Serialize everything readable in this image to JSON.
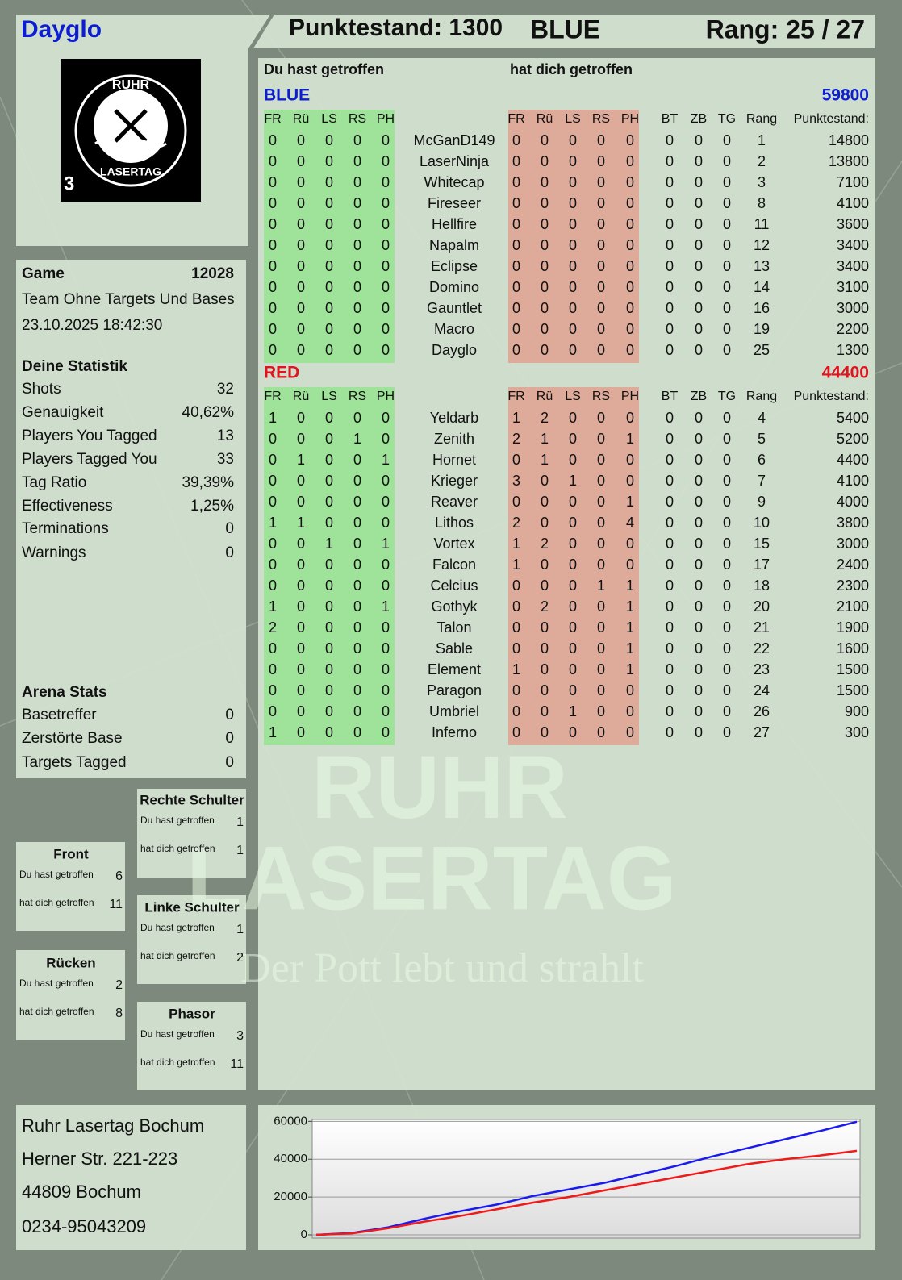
{
  "header": {
    "name": "Dayglo",
    "score": "Punktestand: 1300",
    "team": "BLUE",
    "rank": "Rang: 25 / 27"
  },
  "logo": {
    "top": "RUHR",
    "bottom": "LASERTAG",
    "badge": "3"
  },
  "game": {
    "label": "Game",
    "id": 12028,
    "mode": "Team Ohne Targets Und Bases",
    "date": "23.10.2025 18:42:30"
  },
  "statistik": {
    "title": "Deine Statistik",
    "rows": [
      [
        "Shots",
        32
      ],
      [
        "Genauigkeit",
        "40,62%"
      ],
      [
        "Players You Tagged",
        13
      ],
      [
        "Players Tagged You",
        33
      ],
      [
        "Tag Ratio",
        "39,39%"
      ],
      [
        "Effectiveness",
        "1,25%"
      ],
      [
        "Terminations",
        0
      ],
      [
        "Warnings",
        0
      ]
    ]
  },
  "arena": {
    "title": "Arena Stats",
    "rows": [
      [
        "Basetreffer",
        0
      ],
      [
        "Zerstörte Base",
        0
      ],
      [
        "Targets Tagged",
        0
      ]
    ]
  },
  "zones": [
    {
      "title": "Rechte Schulter",
      "rows": [
        [
          "Du hast getroffen",
          1
        ],
        [
          "hat dich getroffen",
          1
        ]
      ]
    },
    {
      "title": "Front",
      "rows": [
        [
          "Du hast getroffen",
          6
        ],
        [
          "hat dich getroffen",
          11
        ]
      ]
    },
    {
      "title": "Linke Schulter",
      "rows": [
        [
          "Du hast getroffen",
          1
        ],
        [
          "hat dich getroffen",
          2
        ]
      ]
    },
    {
      "title": "Rücken",
      "rows": [
        [
          "Du hast getroffen",
          2
        ],
        [
          "hat dich getroffen",
          8
        ]
      ]
    },
    {
      "title": "Phasor",
      "rows": [
        [
          "Du hast getroffen",
          3
        ],
        [
          "hat dich getroffen",
          11
        ]
      ]
    }
  ],
  "address": [
    "Ruhr Lasertag Bochum",
    "Herner Str. 221-223",
    "44809 Bochum",
    "0234-95043209"
  ],
  "table": {
    "hit_heading": "Du hast getroffen",
    "got_heading": "hat dich getroffen",
    "hit_columns": [
      "FR",
      "Rü",
      "LS",
      "RS",
      "PH"
    ],
    "extra_columns": [
      "BT",
      "ZB",
      "TG",
      "Rang",
      "Punktestand:"
    ],
    "teams": [
      {
        "name": "BLUE",
        "total": 59800,
        "color": "#0c1ed0",
        "players": [
          {
            "name": "McGanD149",
            "hit": [
              0,
              0,
              0,
              0,
              0
            ],
            "got": [
              0,
              0,
              0,
              0,
              0
            ],
            "extra": [
              0,
              0,
              0,
              1,
              14800
            ]
          },
          {
            "name": "LaserNinja",
            "hit": [
              0,
              0,
              0,
              0,
              0
            ],
            "got": [
              0,
              0,
              0,
              0,
              0
            ],
            "extra": [
              0,
              0,
              0,
              2,
              13800
            ]
          },
          {
            "name": "Whitecap",
            "hit": [
              0,
              0,
              0,
              0,
              0
            ],
            "got": [
              0,
              0,
              0,
              0,
              0
            ],
            "extra": [
              0,
              0,
              0,
              3,
              7100
            ]
          },
          {
            "name": "Fireseer",
            "hit": [
              0,
              0,
              0,
              0,
              0
            ],
            "got": [
              0,
              0,
              0,
              0,
              0
            ],
            "extra": [
              0,
              0,
              0,
              8,
              4100
            ]
          },
          {
            "name": "Hellfire",
            "hit": [
              0,
              0,
              0,
              0,
              0
            ],
            "got": [
              0,
              0,
              0,
              0,
              0
            ],
            "extra": [
              0,
              0,
              0,
              11,
              3600
            ]
          },
          {
            "name": "Napalm",
            "hit": [
              0,
              0,
              0,
              0,
              0
            ],
            "got": [
              0,
              0,
              0,
              0,
              0
            ],
            "extra": [
              0,
              0,
              0,
              12,
              3400
            ]
          },
          {
            "name": "Eclipse",
            "hit": [
              0,
              0,
              0,
              0,
              0
            ],
            "got": [
              0,
              0,
              0,
              0,
              0
            ],
            "extra": [
              0,
              0,
              0,
              13,
              3400
            ]
          },
          {
            "name": "Domino",
            "hit": [
              0,
              0,
              0,
              0,
              0
            ],
            "got": [
              0,
              0,
              0,
              0,
              0
            ],
            "extra": [
              0,
              0,
              0,
              14,
              3100
            ]
          },
          {
            "name": "Gauntlet",
            "hit": [
              0,
              0,
              0,
              0,
              0
            ],
            "got": [
              0,
              0,
              0,
              0,
              0
            ],
            "extra": [
              0,
              0,
              0,
              16,
              3000
            ]
          },
          {
            "name": "Macro",
            "hit": [
              0,
              0,
              0,
              0,
              0
            ],
            "got": [
              0,
              0,
              0,
              0,
              0
            ],
            "extra": [
              0,
              0,
              0,
              19,
              2200
            ]
          },
          {
            "name": "Dayglo",
            "hit": [
              0,
              0,
              0,
              0,
              0
            ],
            "got": [
              0,
              0,
              0,
              0,
              0
            ],
            "extra": [
              0,
              0,
              0,
              25,
              1300
            ]
          }
        ]
      },
      {
        "name": "RED",
        "total": 44400,
        "color": "#e0141e",
        "players": [
          {
            "name": "Yeldarb",
            "hit": [
              1,
              0,
              0,
              0,
              0
            ],
            "got": [
              1,
              2,
              0,
              0,
              0
            ],
            "extra": [
              0,
              0,
              0,
              4,
              5400
            ]
          },
          {
            "name": "Zenith",
            "hit": [
              0,
              0,
              0,
              1,
              0
            ],
            "got": [
              2,
              1,
              0,
              0,
              1
            ],
            "extra": [
              0,
              0,
              0,
              5,
              5200
            ]
          },
          {
            "name": "Hornet",
            "hit": [
              0,
              1,
              0,
              0,
              1
            ],
            "got": [
              0,
              1,
              0,
              0,
              0
            ],
            "extra": [
              0,
              0,
              0,
              6,
              4400
            ]
          },
          {
            "name": "Krieger",
            "hit": [
              0,
              0,
              0,
              0,
              0
            ],
            "got": [
              3,
              0,
              1,
              0,
              0
            ],
            "extra": [
              0,
              0,
              0,
              7,
              4100
            ]
          },
          {
            "name": "Reaver",
            "hit": [
              0,
              0,
              0,
              0,
              0
            ],
            "got": [
              0,
              0,
              0,
              0,
              1
            ],
            "extra": [
              0,
              0,
              0,
              9,
              4000
            ]
          },
          {
            "name": "Lithos",
            "hit": [
              1,
              1,
              0,
              0,
              0
            ],
            "got": [
              2,
              0,
              0,
              0,
              4
            ],
            "extra": [
              0,
              0,
              0,
              10,
              3800
            ]
          },
          {
            "name": "Vortex",
            "hit": [
              0,
              0,
              1,
              0,
              1
            ],
            "got": [
              1,
              2,
              0,
              0,
              0
            ],
            "extra": [
              0,
              0,
              0,
              15,
              3000
            ]
          },
          {
            "name": "Falcon",
            "hit": [
              0,
              0,
              0,
              0,
              0
            ],
            "got": [
              1,
              0,
              0,
              0,
              0
            ],
            "extra": [
              0,
              0,
              0,
              17,
              2400
            ]
          },
          {
            "name": "Celcius",
            "hit": [
              0,
              0,
              0,
              0,
              0
            ],
            "got": [
              0,
              0,
              0,
              1,
              1
            ],
            "extra": [
              0,
              0,
              0,
              18,
              2300
            ]
          },
          {
            "name": "Gothyk",
            "hit": [
              1,
              0,
              0,
              0,
              1
            ],
            "got": [
              0,
              2,
              0,
              0,
              1
            ],
            "extra": [
              0,
              0,
              0,
              20,
              2100
            ]
          },
          {
            "name": "Talon",
            "hit": [
              2,
              0,
              0,
              0,
              0
            ],
            "got": [
              0,
              0,
              0,
              0,
              1
            ],
            "extra": [
              0,
              0,
              0,
              21,
              1900
            ]
          },
          {
            "name": "Sable",
            "hit": [
              0,
              0,
              0,
              0,
              0
            ],
            "got": [
              0,
              0,
              0,
              0,
              1
            ],
            "extra": [
              0,
              0,
              0,
              22,
              1600
            ]
          },
          {
            "name": "Element",
            "hit": [
              0,
              0,
              0,
              0,
              0
            ],
            "got": [
              1,
              0,
              0,
              0,
              1
            ],
            "extra": [
              0,
              0,
              0,
              23,
              1500
            ]
          },
          {
            "name": "Paragon",
            "hit": [
              0,
              0,
              0,
              0,
              0
            ],
            "got": [
              0,
              0,
              0,
              0,
              0
            ],
            "extra": [
              0,
              0,
              0,
              24,
              1500
            ]
          },
          {
            "name": "Umbriel",
            "hit": [
              0,
              0,
              0,
              0,
              0
            ],
            "got": [
              0,
              0,
              1,
              0,
              0
            ],
            "extra": [
              0,
              0,
              0,
              26,
              900
            ]
          },
          {
            "name": "Inferno",
            "hit": [
              1,
              0,
              0,
              0,
              0
            ],
            "got": [
              0,
              0,
              0,
              0,
              0
            ],
            "extra": [
              0,
              0,
              0,
              27,
              300
            ]
          }
        ]
      }
    ]
  },
  "watermark": {
    "line1": "RUHR",
    "line2": "LASERTAG",
    "slogan": "Der Pott lebt und strahlt"
  },
  "chart_data": {
    "type": "line",
    "ylim": [
      0,
      61000
    ],
    "yticks": [
      0,
      20000,
      40000,
      60000
    ],
    "grid": true,
    "series": [
      {
        "color": "#1a1af0",
        "values": [
          0,
          1000,
          4000,
          8500,
          12500,
          16000,
          20500,
          24000,
          27500,
          32000,
          36500,
          41500,
          46000,
          50500,
          55000,
          59800
        ]
      },
      {
        "color": "#f01a1a",
        "values": [
          0,
          800,
          3500,
          7000,
          10000,
          13500,
          17000,
          20000,
          23500,
          27000,
          30500,
          34000,
          37500,
          40000,
          42000,
          44400
        ]
      }
    ]
  }
}
